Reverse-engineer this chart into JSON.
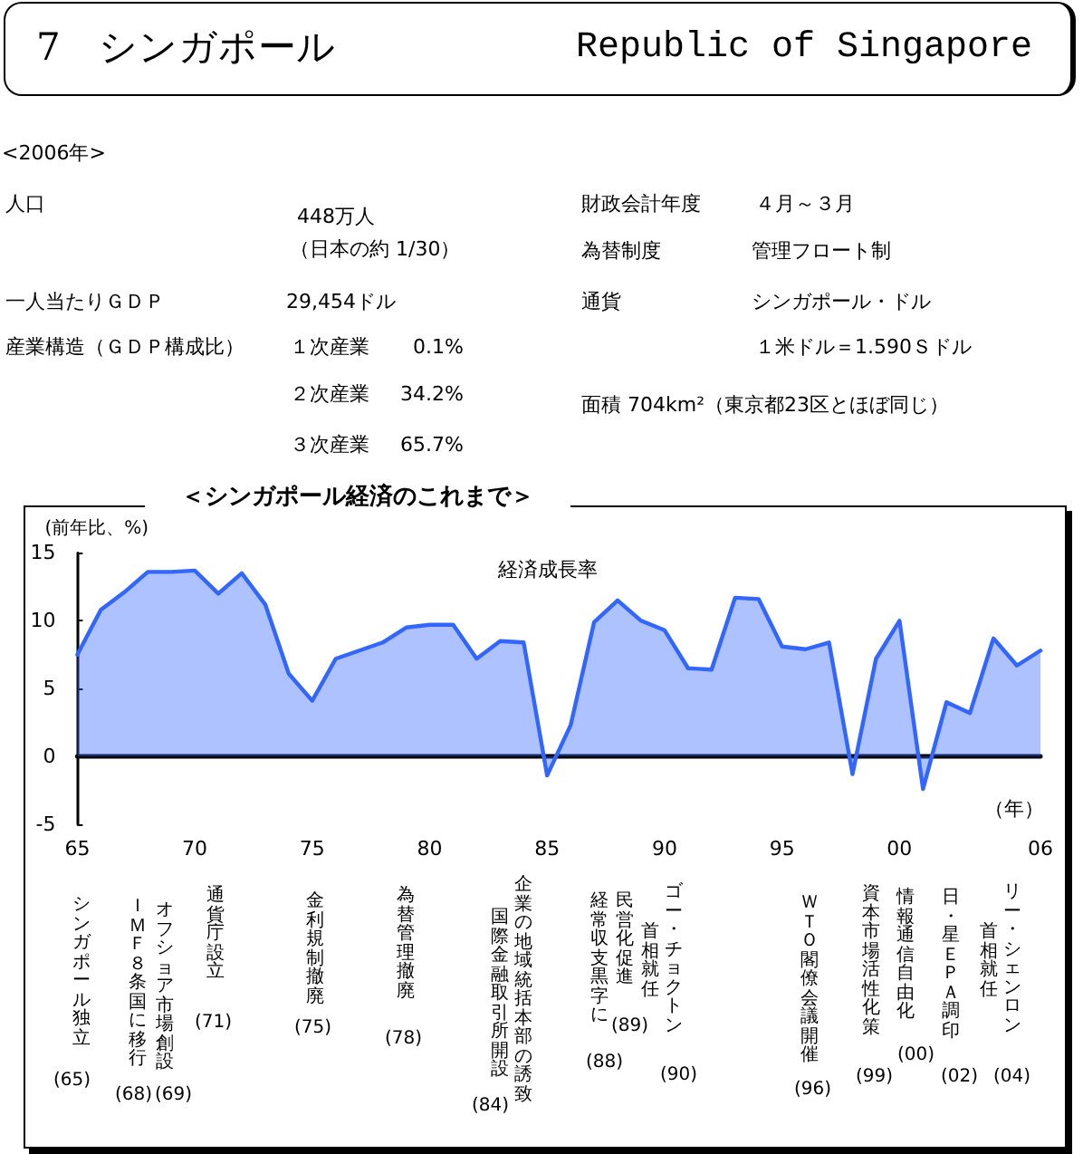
{
  "chart_data": [
    {
      "type": "other",
      "title": "7　シンガポール",
      "subtitle": "Republic of Singapore",
      "annotations": [
        "<2006年>",
        "人口",
        "448万人",
        "（日本の約 1/30）",
        "一人当たりＧＤＰ",
        "29,454ドル",
        "産業構造（ＧＤＰ構成比）",
        "１次産業",
        "0.1%",
        "２次産業",
        "34.2%",
        "３次産業",
        "65.7%",
        "財政会計年度",
        "４月～３月",
        "為替制度",
        "管理フロート制",
        "通貨",
        "シンガポール・ドル",
        "１米ドル＝1.590Ｓドル",
        "面積 704km²（東京都23区とほぼ同じ）"
      ]
    },
    {
      "type": "area",
      "title": "＜シンガポール経済のこれまで＞",
      "xlabel": "（年）",
      "ylabel": "(前年比、%)",
      "x": [
        1965,
        1966,
        1967,
        1968,
        1969,
        1970,
        1971,
        1972,
        1973,
        1974,
        1975,
        1976,
        1977,
        1978,
        1979,
        1980,
        1981,
        1982,
        1983,
        1984,
        1985,
        1986,
        1987,
        1988,
        1989,
        1990,
        1991,
        1992,
        1993,
        1994,
        1995,
        1996,
        1997,
        1998,
        1999,
        2000,
        2001,
        2002,
        2003,
        2004,
        2005,
        2006
      ],
      "series": [
        {
          "name": "経済成長率",
          "color": "#3366ff",
          "values": [
            7.5,
            10.8,
            12.1,
            13.6,
            13.6,
            13.7,
            12.0,
            13.5,
            11.2,
            6.1,
            4.1,
            7.2,
            7.8,
            8.4,
            9.5,
            9.7,
            9.7,
            7.2,
            8.5,
            8.4,
            -1.4,
            2.3,
            9.9,
            11.5,
            10.0,
            9.3,
            6.5,
            6.4,
            11.7,
            11.6,
            8.1,
            7.9,
            8.4,
            -1.3,
            7.2,
            10.0,
            -2.4,
            4.0,
            3.2,
            8.7,
            6.7,
            7.8
          ]
        }
      ],
      "xlim": [
        1965,
        2006
      ],
      "xticks": [
        {
          "value": 1965,
          "label": "65"
        },
        {
          "value": 1970,
          "label": "70"
        },
        {
          "value": 1975,
          "label": "75"
        },
        {
          "value": 1980,
          "label": "80"
        },
        {
          "value": 1985,
          "label": "85"
        },
        {
          "value": 1990,
          "label": "90"
        },
        {
          "value": 1995,
          "label": "95"
        },
        {
          "value": 2000,
          "label": "00"
        },
        {
          "value": 2006,
          "label": "06"
        }
      ],
      "ylim": [
        -5,
        15
      ],
      "yticks": [
        -5,
        0,
        5,
        10,
        15
      ],
      "annotations": [
        "シンガポール独立",
        "(65)",
        "ＩＭＦ８条国に移行",
        "(68)",
        "オフショア市場創設",
        "(69)",
        "通貨庁設立",
        "(71)",
        "金利規制撤廃",
        "(75)",
        "為替管理撤廃",
        "(78)",
        "企業の地域統括本部の誘致",
        "国際金融取引所開設",
        "(84)",
        "経常収支黒字に",
        "(88)",
        "民営化促進",
        "(89)",
        "ゴー・チョクトン",
        "首相就任",
        "(90)",
        "ＷＴＯ閣僚会議開催",
        "(96)",
        "資本市場活性化策",
        "(99)",
        "情報通信自由化",
        "(00)",
        "日・星ＥＰＡ調印",
        "(02)",
        "リー・シェンロン",
        "首相就任",
        "(04)"
      ]
    }
  ]
}
